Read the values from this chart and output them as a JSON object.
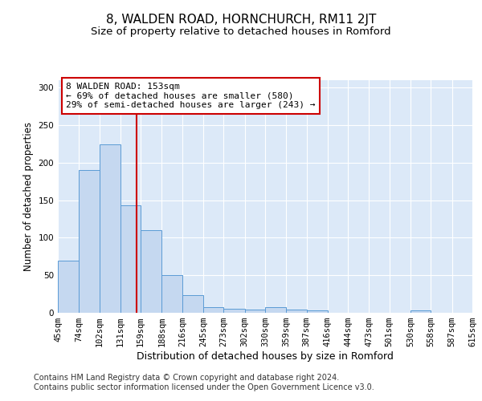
{
  "title1": "8, WALDEN ROAD, HORNCHURCH, RM11 2JT",
  "title2": "Size of property relative to detached houses in Romford",
  "xlabel": "Distribution of detached houses by size in Romford",
  "ylabel": "Number of detached properties",
  "bar_values": [
    70,
    190,
    225,
    143,
    110,
    50,
    24,
    8,
    5,
    4,
    8,
    4,
    3,
    0,
    0,
    0,
    0,
    3,
    0,
    0
  ],
  "bin_edges": [
    45,
    74,
    102,
    131,
    159,
    188,
    216,
    245,
    273,
    302,
    330,
    359,
    387,
    416,
    444,
    473,
    501,
    530,
    558,
    587,
    615
  ],
  "tick_labels": [
    "45sqm",
    "74sqm",
    "102sqm",
    "131sqm",
    "159sqm",
    "188sqm",
    "216sqm",
    "245sqm",
    "273sqm",
    "302sqm",
    "330sqm",
    "359sqm",
    "387sqm",
    "416sqm",
    "444sqm",
    "473sqm",
    "501sqm",
    "530sqm",
    "558sqm",
    "587sqm",
    "615sqm"
  ],
  "bar_color": "#c5d8f0",
  "bar_edge_color": "#5b9bd5",
  "ref_line_x": 153,
  "ref_line_color": "#cc0000",
  "annotation_line1": "8 WALDEN ROAD: 153sqm",
  "annotation_line2": "← 69% of detached houses are smaller (580)",
  "annotation_line3": "29% of semi-detached houses are larger (243) →",
  "annotation_box_color": "#ffffff",
  "annotation_box_edge": "#cc0000",
  "ylim": [
    0,
    310
  ],
  "yticks": [
    0,
    50,
    100,
    150,
    200,
    250,
    300
  ],
  "background_color": "#dce9f8",
  "footer1": "Contains HM Land Registry data © Crown copyright and database right 2024.",
  "footer2": "Contains public sector information licensed under the Open Government Licence v3.0.",
  "title1_fontsize": 11,
  "title2_fontsize": 9.5,
  "xlabel_fontsize": 9,
  "ylabel_fontsize": 8.5,
  "tick_fontsize": 7.5,
  "annotation_fontsize": 8,
  "footer_fontsize": 7
}
